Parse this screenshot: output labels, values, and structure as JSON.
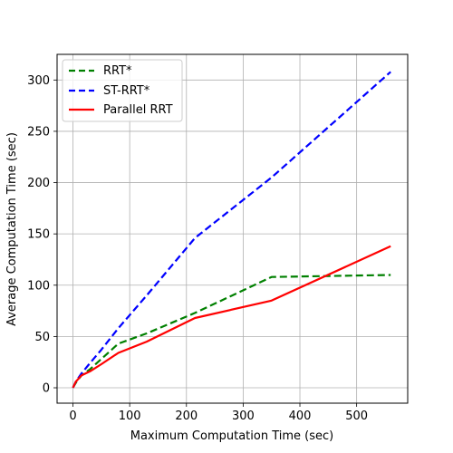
{
  "chart_data": {
    "type": "line",
    "title": "",
    "xlabel": "Maximum Computation Time (sec)",
    "ylabel": "Average Computation Time (sec)",
    "xlim": [
      -28,
      590
    ],
    "ylim": [
      -15,
      325
    ],
    "xticks": [
      0,
      100,
      200,
      300,
      400,
      500
    ],
    "yticks": [
      0,
      50,
      100,
      150,
      200,
      250,
      300
    ],
    "grid": true,
    "legend_position": "top-left",
    "series": [
      {
        "name": "RRT*",
        "color": "#008000",
        "dash": "dashed",
        "x": [
          0,
          5,
          15,
          30,
          50,
          80,
          130,
          215,
          350,
          560
        ],
        "y": [
          0,
          5,
          12,
          18,
          28,
          43,
          53,
          73,
          108,
          110
        ]
      },
      {
        "name": "ST-RRT*",
        "color": "#0000ff",
        "dash": "dashed",
        "x": [
          0,
          5,
          15,
          30,
          50,
          80,
          130,
          215,
          350,
          560
        ],
        "y": [
          0,
          6,
          14,
          24,
          37,
          58,
          90,
          146,
          205,
          308
        ]
      },
      {
        "name": "Parallel RRT",
        "color": "#ff0000",
        "dash": "solid",
        "x": [
          0,
          5,
          15,
          30,
          50,
          80,
          130,
          215,
          350,
          560
        ],
        "y": [
          0,
          6,
          12,
          16,
          23,
          34,
          45,
          68,
          85,
          138
        ]
      }
    ]
  }
}
